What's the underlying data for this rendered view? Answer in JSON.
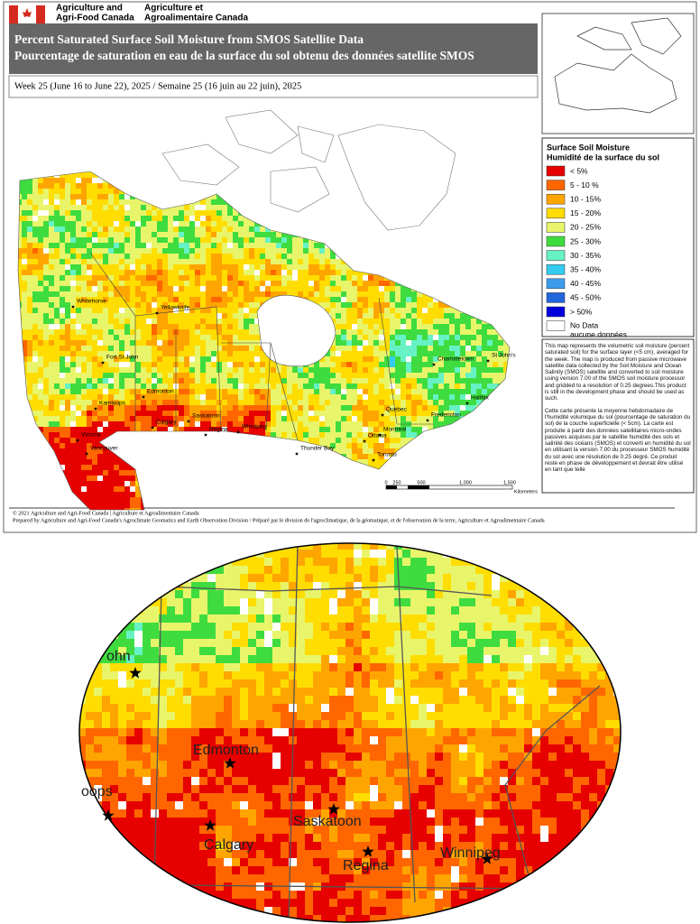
{
  "header": {
    "org_en": [
      "Agriculture and",
      "Agri-Food Canada"
    ],
    "org_fr": [
      "Agriculture et",
      "Agroalimentaire Canada"
    ],
    "title": [
      "Percent Saturated Surface Soil Moisture from SMOS Satellite Data",
      "Pourcentage de saturation en eau de la surface du sol obtenu des données satellite SMOS"
    ],
    "week": "Week 25 (June 16 to June 22), 2025 / Semaine 25 (16 juin au 22 juin), 2025"
  },
  "legend": {
    "title": [
      "Surface Soil Moisture",
      "Humidité de la surface du sol"
    ],
    "items": [
      {
        "label": "< 5%",
        "color": "#e60000"
      },
      {
        "label": "5 - 10 %",
        "color": "#ff6600"
      },
      {
        "label": "10 - 15%",
        "color": "#ffa500"
      },
      {
        "label": "15 - 20%",
        "color": "#ffdd00"
      },
      {
        "label": "20 - 25%",
        "color": "#e8f56a"
      },
      {
        "label": "25 - 30%",
        "color": "#3fdc3f"
      },
      {
        "label": "30 - 35%",
        "color": "#66f2c4"
      },
      {
        "label": "35 - 40%",
        "color": "#33ccee"
      },
      {
        "label": "40 - 45%",
        "color": "#3c9cec"
      },
      {
        "label": "45 - 50%",
        "color": "#2266dd"
      },
      {
        "label": "> 50%",
        "color": "#0000dd"
      },
      {
        "label": "No Data\naucune données",
        "color": "#ffffff"
      }
    ]
  },
  "description": [
    "This map represents the volumetric soil moisture (percent saturated soil) for the surface layer (<5 cm), averaged for the week. The map is produced from passive microwave satellite data collected by the Soil Moisture and Ocean Salinity (SMOS) satellite and converted to soil moisture using version 7.00 of the SMOS soil moisture processor and gridded to a resolution of 0.25 degrees.This product is still in the development phase and should be used as such.",
    "Cette carte présente la moyenne hebdomadaire de l'humidité volumique du sol (pourcentage de saturation du sol) de la couche superficielle (< 5cm). La carte est produite à partir des données satellitaires micro-ondes passives acquises par le satellite humidité des sols et salinité des océans (SMOS) et converti en humidité du sol en utilisant la version 7.00 du processeur SMOS humidité du sol avec une résolution de 0.25 degré. Ce produit reste en phase de développement et devrait être utilisé en tant que telle"
  ],
  "cities": [
    "Whitehorse",
    "Yellowknife",
    "Fort St John",
    "Edmonton",
    "Kamloops",
    "Saskatoon",
    "Calgary",
    "Regina",
    "Winnipeg",
    "Victoria",
    "Vancouver",
    "Thunder Bay",
    "Charlottetown",
    "St John's",
    "Halifax",
    "Quebec",
    "Fredericton",
    "Montreal",
    "Ottawa",
    "Toronto"
  ],
  "scale": [
    "0",
    "250",
    "500",
    "1,000",
    "1,500",
    "Kilometers"
  ],
  "footer": [
    "© 2021 Agriculture and Agri-Food Canada | Agriculture et Agroalimentaire Canada",
    "Prepared by Agriculture and Agri-Food Canada's Agroclimate Geomatics and Earth Observation Division / Préparé par le division de l'agroclimatique, de la géomatique, et de l'observation de la terre, Agriculture et Agroalimentaire Canada"
  ],
  "inset_cities": [
    "ohn",
    "Edmonton",
    "oops",
    "Calgary",
    "Saskatoon",
    "Regina",
    "Winnipeg"
  ]
}
